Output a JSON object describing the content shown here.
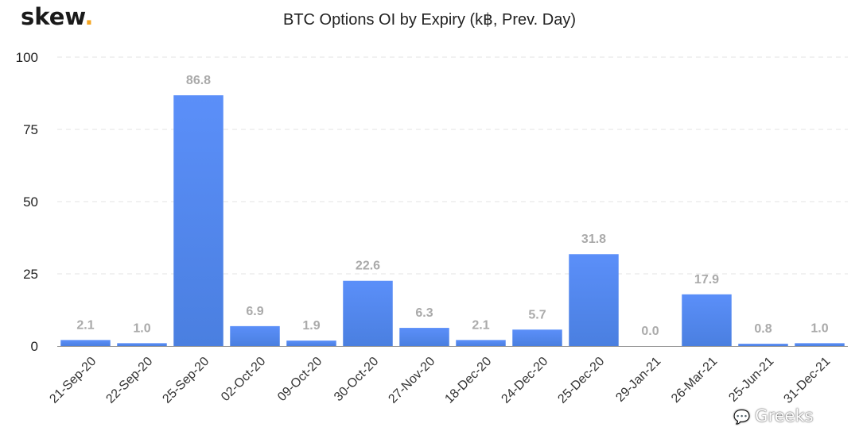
{
  "brand": {
    "name": "skew",
    "dot": ".",
    "accent_color": "#f5a623"
  },
  "watermark": {
    "icon": "wechat-icon",
    "text": "Greeks"
  },
  "chart_data": {
    "type": "bar",
    "title": "BTC Options OI by Expiry (k฿, Prev. Day)",
    "xlabel": "",
    "ylabel": "",
    "ylim": [
      0,
      100
    ],
    "yticks": [
      0,
      25,
      50,
      75,
      100
    ],
    "grid": true,
    "bar_color_top": "#5b8ff9",
    "bar_color_bottom": "#4a7fe0",
    "categories": [
      "21-Sep-20",
      "22-Sep-20",
      "25-Sep-20",
      "02-Oct-20",
      "09-Oct-20",
      "30-Oct-20",
      "27-Nov-20",
      "18-Dec-20",
      "24-Dec-20",
      "25-Dec-20",
      "29-Jan-21",
      "26-Mar-21",
      "25-Jun-21",
      "31-Dec-21"
    ],
    "values": [
      2.1,
      1.0,
      86.8,
      6.9,
      1.9,
      22.6,
      6.3,
      2.1,
      5.7,
      31.8,
      0.0,
      17.9,
      0.8,
      1.0
    ],
    "data_labels": [
      "2.1",
      "1.0",
      "86.8",
      "6.9",
      "1.9",
      "22.6",
      "6.3",
      "2.1",
      "5.7",
      "31.8",
      "0.0",
      "17.9",
      "0.8",
      "1.0"
    ]
  }
}
